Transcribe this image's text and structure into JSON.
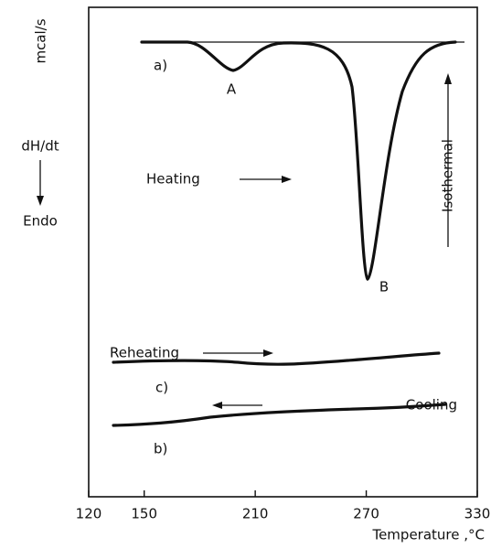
{
  "chart_data": {
    "type": "line",
    "x_label": "Temperature ,°C",
    "y_label": {
      "unit": "mcal/s",
      "quantity": "dH/dt",
      "direction": "Endo"
    },
    "xlim": [
      120,
      330
    ],
    "xticks": [
      120,
      150,
      210,
      270,
      330
    ],
    "curve_labels": [
      "a)",
      "c)",
      "b)"
    ],
    "peak_labels": [
      "A",
      "B"
    ],
    "annotations": [
      "Heating",
      "Isothermal",
      "Reheating",
      "Cooling"
    ]
  }
}
